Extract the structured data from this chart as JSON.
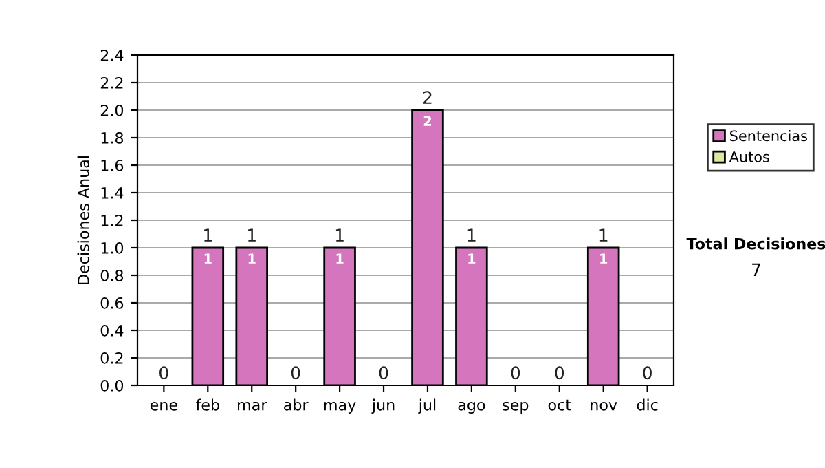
{
  "chart_data": {
    "type": "bar",
    "ylabel": "Decisiones Anual",
    "categories": [
      "ene",
      "feb",
      "mar",
      "abr",
      "may",
      "jun",
      "jul",
      "ago",
      "sep",
      "oct",
      "nov",
      "dic"
    ],
    "series": [
      {
        "name": "Sentencias",
        "color": "#d575bd",
        "values": [
          0,
          1,
          1,
          0,
          1,
          0,
          2,
          1,
          0,
          0,
          1,
          0
        ],
        "value_labels": [
          null,
          "1",
          "1",
          null,
          "1",
          null,
          "2",
          "1",
          null,
          null,
          "1",
          null
        ]
      },
      {
        "name": "Autos",
        "color": "#d9eaa0",
        "values": [
          0,
          0,
          0,
          0,
          0,
          0,
          0,
          0,
          0,
          0,
          0,
          0
        ]
      }
    ],
    "stacked": true,
    "totals": [
      "0",
      "1",
      "1",
      "0",
      "1",
      "0",
      "2",
      "1",
      "0",
      "0",
      "1",
      "0"
    ],
    "ylim": [
      0,
      2.4
    ],
    "yticks": [
      {
        "value": 0,
        "label": "0.0"
      },
      0.2,
      0.4,
      0.6,
      0.8,
      {
        "value": 1,
        "label": "1.0"
      },
      1.2,
      1.4,
      1.6,
      1.8,
      {
        "value": 2,
        "label": "2.0"
      },
      2.2,
      2.4
    ],
    "grid": "y",
    "legend": "right",
    "annotations": [
      "Total Decisiones",
      "7"
    ]
  }
}
